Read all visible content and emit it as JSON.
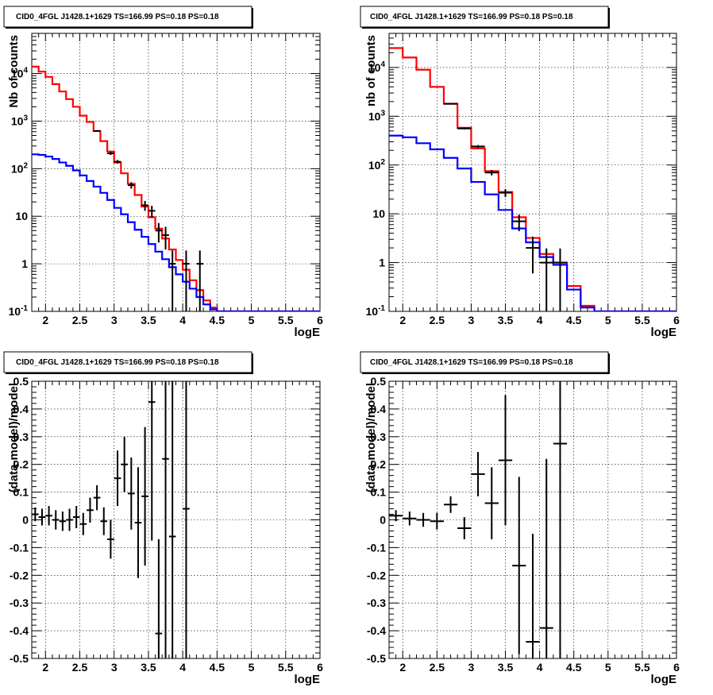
{
  "chart_data": [
    {
      "type": "line",
      "title": "CID0_4FGL J1428.1+1629 TS=166.99 PS=0.18 PS=0.18",
      "xlabel": "logE",
      "ylabel": "Nb of counts",
      "xlim": [
        1.8,
        6.0
      ],
      "ylim": [
        0.1,
        70000
      ],
      "yscale": "log",
      "grid": true,
      "x_ticks": [
        "2",
        "2.5",
        "3",
        "3.5",
        "4",
        "4.5",
        "5",
        "5.5",
        "6"
      ],
      "y_ticks": [
        "10-1",
        "1",
        "10",
        "102",
        "103",
        "104"
      ],
      "colors": {
        "total": "#ff0000",
        "component": "#0000ff",
        "data": "#000000"
      },
      "series": [
        {
          "type": "step",
          "color": "#ff0000",
          "x_edges": [
            1.8,
            1.9,
            2.0,
            2.1,
            2.2,
            2.3,
            2.4,
            2.5,
            2.6,
            2.7,
            2.8,
            2.9,
            3.0,
            3.1,
            3.2,
            3.3,
            3.4,
            3.5,
            3.6,
            3.7,
            3.8,
            3.9,
            4.0,
            4.1,
            4.2,
            4.3,
            4.4,
            4.5,
            4.6,
            4.7,
            4.8,
            4.9,
            5.0,
            5.1,
            5.2,
            5.3,
            5.4,
            5.5,
            5.6,
            5.7,
            5.8,
            5.9,
            6.0
          ],
          "values": [
            14000,
            11000,
            8500,
            6000,
            4200,
            2900,
            2000,
            1300,
            960,
            620,
            380,
            230,
            135,
            80,
            48,
            28,
            16,
            9.5,
            5.5,
            3.4,
            2.0,
            1.2,
            0.75,
            0.45,
            0.28,
            0.17,
            0.12,
            0.1,
            0.1,
            0.1,
            0.1,
            0.1,
            0.1,
            0.1,
            0.1,
            0.1,
            0.1,
            0.1,
            0.1,
            0.1,
            0.1,
            0.1
          ]
        },
        {
          "type": "step",
          "color": "#0000ff",
          "x_edges": [
            1.8,
            1.9,
            2.0,
            2.1,
            2.2,
            2.3,
            2.4,
            2.5,
            2.6,
            2.7,
            2.8,
            2.9,
            3.0,
            3.1,
            3.2,
            3.3,
            3.4,
            3.5,
            3.6,
            3.7,
            3.8,
            3.9,
            4.0,
            4.1,
            4.2,
            4.3,
            4.4,
            4.5,
            4.6,
            4.7,
            4.8,
            4.9,
            5.0,
            5.1,
            5.2,
            5.3,
            5.4,
            5.5,
            5.6,
            5.7,
            5.8,
            5.9,
            6.0
          ],
          "values": [
            200,
            195,
            180,
            160,
            135,
            115,
            92,
            72,
            55,
            42,
            31,
            22,
            15,
            11,
            7.5,
            5.2,
            3.7,
            2.6,
            1.8,
            1.25,
            0.85,
            0.6,
            0.42,
            0.3,
            0.2,
            0.14,
            0.11,
            0.1,
            0.1,
            0.1,
            0.1,
            0.1,
            0.1,
            0.1,
            0.1,
            0.1,
            0.1,
            0.1,
            0.1,
            0.1,
            0.1,
            0.1
          ]
        },
        {
          "type": "errorbar",
          "color": "#000000",
          "x": [
            2.75,
            2.95,
            3.05,
            3.25,
            3.45,
            3.55,
            3.65,
            3.75,
            3.85,
            4.05,
            4.25
          ],
          "y": [
            620,
            210,
            140,
            45,
            17,
            13,
            5,
            4,
            1,
            1,
            1
          ],
          "yerr": [
            25,
            15,
            12,
            7,
            4,
            3.6,
            2.2,
            2,
            0.9,
            0.9,
            0.9
          ],
          "xerr": 0.05
        }
      ]
    },
    {
      "type": "line",
      "title": "CID0_4FGL J1428.1+1629 TS=166.99 PS=0.18 PS=0.18",
      "xlabel": "logE",
      "ylabel": "nb of counts",
      "xlim": [
        1.8,
        6.0
      ],
      "ylim": [
        0.1,
        50000
      ],
      "yscale": "log",
      "grid": true,
      "x_ticks": [
        "2",
        "2.5",
        "3",
        "3.5",
        "4",
        "4.5",
        "5",
        "5.5",
        "6"
      ],
      "y_ticks": [
        "10-1",
        "1",
        "10",
        "102",
        "103",
        "104"
      ],
      "series": [
        {
          "type": "step",
          "color": "#ff0000",
          "x_edges": [
            1.8,
            2.0,
            2.2,
            2.4,
            2.6,
            2.8,
            3.0,
            3.2,
            3.4,
            3.6,
            3.8,
            4.0,
            4.2,
            4.4,
            4.6,
            4.8,
            5.0,
            5.2,
            5.4,
            5.6,
            5.8,
            6.0
          ],
          "values": [
            25000,
            16000,
            9000,
            4000,
            1800,
            580,
            220,
            75,
            28,
            8.5,
            3.2,
            1.5,
            1.0,
            0.33,
            0.13,
            0.1,
            0.1,
            0.1,
            0.1,
            0.1,
            0.1
          ]
        },
        {
          "type": "step",
          "color": "#0000ff",
          "x_edges": [
            1.8,
            2.0,
            2.2,
            2.4,
            2.6,
            2.8,
            3.0,
            3.2,
            3.4,
            3.6,
            3.8,
            4.0,
            4.2,
            4.4,
            4.6,
            4.8,
            5.0,
            5.2,
            5.4,
            5.6,
            5.8,
            6.0
          ],
          "values": [
            400,
            370,
            280,
            210,
            140,
            85,
            45,
            25,
            12,
            5.0,
            2.6,
            1.3,
            0.9,
            0.28,
            0.12,
            0.1,
            0.1,
            0.1,
            0.1,
            0.1,
            0.1
          ]
        },
        {
          "type": "errorbar",
          "color": "#000000",
          "x": [
            2.7,
            2.9,
            3.1,
            3.3,
            3.5,
            3.7,
            3.9,
            4.1,
            4.3
          ],
          "y": [
            1800,
            560,
            240,
            70,
            27,
            7,
            2,
            1,
            1
          ],
          "yerr": [
            45,
            25,
            16,
            9,
            5,
            2.6,
            1.4,
            0.95,
            0.95
          ],
          "xerr": 0.1
        }
      ]
    },
    {
      "type": "scatter",
      "title": "CID0_4FGL J1428.1+1629 TS=166.99 PS=0.18 PS=0.18",
      "xlabel": "logE",
      "ylabel": "(data-model)/model",
      "xlim": [
        1.8,
        6.0
      ],
      "ylim": [
        -0.5,
        0.5
      ],
      "grid": true,
      "x_ticks": [
        "2",
        "2.5",
        "3",
        "3.5",
        "4",
        "4.5",
        "5",
        "5.5",
        "6"
      ],
      "y_ticks": [
        "-0.5",
        "-0.4",
        "-0.3",
        "-0.2",
        "-0.1",
        "0",
        "0.1",
        "0.2",
        "0.3",
        "0.4",
        "0.5"
      ],
      "series": [
        {
          "type": "errorbar",
          "color": "#000000",
          "xerr": 0.05,
          "x": [
            1.85,
            1.95,
            2.05,
            2.15,
            2.25,
            2.35,
            2.45,
            2.55,
            2.65,
            2.75,
            2.85,
            2.95,
            3.05,
            3.15,
            3.25,
            3.35,
            3.45,
            3.55,
            3.65,
            3.75,
            3.85,
            4.05
          ],
          "y": [
            0.02,
            0.01,
            0.015,
            0.0,
            -0.005,
            0.0,
            0.01,
            -0.015,
            0.035,
            0.08,
            -0.005,
            -0.07,
            0.15,
            0.2,
            0.095,
            -0.01,
            0.085,
            0.425,
            -0.41,
            0.22,
            -0.06,
            0.04
          ],
          "yerr": [
            0.025,
            0.03,
            0.035,
            0.035,
            0.035,
            0.04,
            0.04,
            0.04,
            0.045,
            0.045,
            0.05,
            0.07,
            0.1,
            0.1,
            0.13,
            0.2,
            0.25,
            0.5,
            0.34,
            0.8,
            1.0,
            1.0
          ]
        }
      ]
    },
    {
      "type": "scatter",
      "title": "CID0_4FGL J1428.1+1629 TS=166.99 PS=0.18 PS=0.18",
      "xlabel": "logE",
      "ylabel": "(data-model)/model",
      "xlim": [
        1.8,
        6.0
      ],
      "ylim": [
        -0.5,
        0.5
      ],
      "grid": true,
      "x_ticks": [
        "2",
        "2.5",
        "3",
        "3.5",
        "4",
        "4.5",
        "5",
        "5.5",
        "6"
      ],
      "y_ticks": [
        "-0.5",
        "-0.4",
        "-0.3",
        "-0.2",
        "-0.1",
        "0",
        "0.1",
        "0.2",
        "0.3",
        "0.4",
        "0.5"
      ],
      "series": [
        {
          "type": "errorbar",
          "color": "#000000",
          "xerr": 0.1,
          "x": [
            1.9,
            2.1,
            2.3,
            2.5,
            2.7,
            2.9,
            3.1,
            3.3,
            3.5,
            3.7,
            3.9,
            4.1,
            4.3
          ],
          "y": [
            0.015,
            0.005,
            0.0,
            -0.005,
            0.055,
            -0.03,
            0.165,
            0.06,
            0.215,
            -0.165,
            -0.44,
            -0.39,
            0.275
          ],
          "yerr": [
            0.02,
            0.025,
            0.025,
            0.03,
            0.03,
            0.04,
            0.08,
            0.13,
            0.235,
            0.32,
            0.39,
            0.61,
            1.0
          ]
        }
      ]
    }
  ]
}
